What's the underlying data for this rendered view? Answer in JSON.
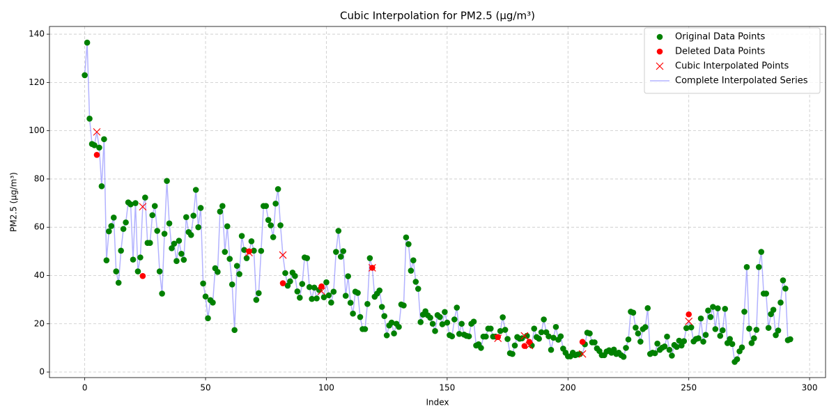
{
  "chart_data": {
    "type": "scatter",
    "title": "Cubic Interpolation for PM2.5 (μg/m³)",
    "x_label": "Index",
    "y_label": "PM2.5 (μg/m³)",
    "xlim": [
      -14.6,
      306.6
    ],
    "ylim": [
      -2.3,
      143.2
    ],
    "xticks": [
      0,
      50,
      100,
      150,
      200,
      250,
      300
    ],
    "yticks": [
      0,
      20,
      40,
      60,
      80,
      100,
      120,
      140
    ],
    "grid": true,
    "legend": "upper right",
    "x": [
      0,
      1,
      2,
      3,
      4,
      5,
      6,
      7,
      8,
      9,
      10,
      11,
      12,
      13,
      14,
      15,
      16,
      17,
      18,
      19,
      20,
      21,
      22,
      23,
      24,
      25,
      26,
      27,
      28,
      29,
      30,
      31,
      32,
      33,
      34,
      35,
      36,
      37,
      38,
      39,
      40,
      41,
      42,
      43,
      44,
      45,
      46,
      47,
      48,
      49,
      50,
      51,
      52,
      53,
      54,
      55,
      56,
      57,
      58,
      59,
      60,
      61,
      62,
      63,
      64,
      65,
      66,
      67,
      68,
      69,
      70,
      71,
      72,
      73,
      74,
      75,
      76,
      77,
      78,
      79,
      80,
      81,
      82,
      83,
      84,
      85,
      86,
      87,
      88,
      89,
      90,
      91,
      92,
      93,
      94,
      95,
      96,
      97,
      98,
      99,
      100,
      101,
      102,
      103,
      104,
      105,
      106,
      107,
      108,
      109,
      110,
      111,
      112,
      113,
      114,
      115,
      116,
      117,
      118,
      119,
      120,
      121,
      122,
      123,
      124,
      125,
      126,
      127,
      128,
      129,
      130,
      131,
      132,
      133,
      134,
      135,
      136,
      137,
      138,
      139,
      140,
      141,
      142,
      143,
      144,
      145,
      146,
      147,
      148,
      149,
      150,
      151,
      152,
      153,
      154,
      155,
      156,
      157,
      158,
      159,
      160,
      161,
      162,
      163,
      164,
      165,
      166,
      167,
      168,
      169,
      170,
      171,
      172,
      173,
      174,
      175,
      176,
      177,
      178,
      179,
      180,
      181,
      182,
      183,
      184,
      185,
      186,
      187,
      188,
      189,
      190,
      191,
      192,
      193,
      194,
      195,
      196,
      197,
      198,
      199,
      200,
      201,
      202,
      203,
      204,
      205,
      206,
      207,
      208,
      209,
      210,
      211,
      212,
      213,
      214,
      215,
      216,
      217,
      218,
      219,
      220,
      221,
      222,
      223,
      224,
      225,
      226,
      227,
      228,
      229,
      230,
      231,
      232,
      233,
      234,
      235,
      236,
      237,
      238,
      239,
      240,
      241,
      242,
      243,
      244,
      245,
      246,
      247,
      248,
      249,
      250,
      251,
      252,
      253,
      254,
      255,
      256,
      257,
      258,
      259,
      260,
      261,
      262,
      263,
      264,
      265,
      266,
      267,
      268,
      269,
      270,
      271,
      272,
      273,
      274,
      275,
      276,
      277,
      278,
      279,
      280,
      281,
      282,
      283,
      284,
      285,
      286,
      287,
      288,
      289,
      290,
      291,
      292
    ],
    "series": [
      {
        "name": "Original Data Points",
        "color": "#008000",
        "style": "marker",
        "values": [
          123,
          136.5,
          105,
          94.5,
          94,
          null,
          93,
          77,
          96.5,
          46.3,
          58.3,
          60.5,
          64,
          41.7,
          37,
          50.3,
          59.3,
          62,
          70.3,
          69.5,
          46.6,
          70,
          41.7,
          47.5,
          null,
          72.3,
          53.5,
          53.5,
          65,
          68.8,
          58.5,
          41.7,
          32.5,
          57.3,
          79.2,
          61.6,
          51.3,
          53.2,
          46,
          54.4,
          49,
          46.5,
          64.2,
          58,
          56.8,
          64.8,
          75.5,
          60,
          68,
          36.7,
          31.3,
          22.3,
          29.8,
          28.8,
          43,
          41.5,
          66.5,
          68.8,
          49.8,
          60.4,
          46.9,
          36.3,
          17.4,
          44,
          40.6,
          56.4,
          50.6,
          47.2,
          null,
          54.2,
          50.3,
          29.9,
          32.7,
          50.2,
          68.8,
          68.8,
          63,
          60.8,
          55.9,
          69.8,
          75.8,
          60.8,
          null,
          41,
          35.8,
          37.6,
          41.2,
          39.8,
          33.4,
          30.8,
          36.5,
          47.5,
          47.2,
          35.2,
          30.3,
          35,
          30.5,
          34,
          null,
          31,
          37.2,
          31.8,
          28.8,
          33.3,
          49.8,
          58.5,
          47.8,
          50.1,
          31.6,
          39.7,
          28.7,
          24.2,
          33.3,
          32.8,
          22.8,
          17.8,
          17.8,
          28.2,
          47.2,
          null,
          31.2,
          32.5,
          33.8,
          27,
          23.2,
          15.2,
          19.3,
          20.5,
          16,
          20,
          18.7,
          28,
          27.6,
          55.8,
          53,
          42,
          46.3,
          37.4,
          34.5,
          20.7,
          23.8,
          25.2,
          23.5,
          22.5,
          20,
          17,
          23.6,
          22.8,
          19.8,
          24.9,
          20.5,
          15.3,
          14.8,
          21.8,
          26.7,
          15.8,
          20,
          15.5,
          15,
          14.8,
          20,
          20.9,
          11,
          11.5,
          10,
          14.7,
          14.7,
          18,
          18,
          14.7,
          14.7,
          null,
          17,
          22.7,
          17.5,
          13.7,
          7.8,
          7.5,
          11,
          14.5,
          13.8,
          14,
          null,
          15,
          null,
          11,
          18,
          14.5,
          13.8,
          16.5,
          21.8,
          16.5,
          14.8,
          9.2,
          14.2,
          18.7,
          13.4,
          14.8,
          9.7,
          8,
          6.5,
          6.5,
          8,
          7,
          7.3,
          7.5,
          null,
          11.5,
          16.3,
          16,
          12.3,
          12.3,
          9.8,
          8.7,
          7,
          7,
          8.5,
          9,
          8,
          9.3,
          7.5,
          8,
          7,
          6.3,
          10,
          13.5,
          25,
          24.6,
          18.4,
          16,
          12.6,
          17.8,
          18.6,
          26.5,
          7.5,
          8,
          7.8,
          11.8,
          9.2,
          10.1,
          10.6,
          14.7,
          9.2,
          6.8,
          11.2,
          10.4,
          13,
          11,
          12.8,
          18.2,
          null,
          18.5,
          12.7,
          13.7,
          14,
          22.2,
          12.6,
          15.4,
          25.5,
          22.8,
          27,
          17.8,
          26.4,
          15,
          17.3,
          26.2,
          12,
          13.7,
          11.6,
          4.2,
          5.3,
          8.6,
          10.2,
          25,
          43.5,
          18,
          12,
          14,
          17.5,
          43.5,
          49.8,
          32.5,
          32.5,
          18.3,
          24,
          25.8,
          15.3,
          17.2,
          28.8,
          38,
          34.6,
          13.2,
          13.6
        ]
      },
      {
        "name": "Deleted Data Points",
        "color": "#ff0000",
        "style": "marker",
        "x": [
          5,
          24,
          68,
          82,
          98,
          119,
          171,
          182,
          184,
          206,
          250
        ],
        "values": [
          90,
          39.8,
          50,
          36.8,
          35.5,
          43.2,
          14.5,
          10.8,
          12.5,
          12.5,
          23.9
        ]
      },
      {
        "name": "Cubic Interpolated Points",
        "color": "#ff0000",
        "style": "cross",
        "x": [
          5,
          24,
          68,
          82,
          98,
          119,
          171,
          182,
          184,
          206,
          250
        ],
        "values": [
          99.5,
          68.5,
          49.5,
          48.5,
          33.5,
          43.2,
          14,
          15,
          11,
          7.5,
          21
        ]
      },
      {
        "name": "Complete Interpolated Series",
        "color": "#0000ff",
        "style": "line",
        "alpha": 0.3,
        "values": [
          123,
          136.5,
          105,
          94.5,
          94,
          99.5,
          93,
          77,
          96.5,
          46.3,
          58.3,
          60.5,
          64,
          41.7,
          37,
          50.3,
          59.3,
          62,
          70.3,
          69.5,
          46.6,
          70,
          41.7,
          47.5,
          68.5,
          72.3,
          53.5,
          53.5,
          65,
          68.8,
          58.5,
          41.7,
          32.5,
          57.3,
          79.2,
          61.6,
          51.3,
          53.2,
          46,
          54.4,
          49,
          46.5,
          64.2,
          58,
          56.8,
          64.8,
          75.5,
          60,
          68,
          36.7,
          31.3,
          22.3,
          29.8,
          28.8,
          43,
          41.5,
          66.5,
          68.8,
          49.8,
          60.4,
          46.9,
          36.3,
          17.4,
          44,
          40.6,
          56.4,
          50.6,
          47.2,
          49.5,
          54.2,
          50.3,
          29.9,
          32.7,
          50.2,
          68.8,
          68.8,
          63,
          60.8,
          55.9,
          69.8,
          75.8,
          60.8,
          48.5,
          41,
          35.8,
          37.6,
          41.2,
          39.8,
          33.4,
          30.8,
          36.5,
          47.5,
          47.2,
          35.2,
          30.3,
          35,
          30.5,
          34,
          33.5,
          31,
          37.2,
          31.8,
          28.8,
          33.3,
          49.8,
          58.5,
          47.8,
          50.1,
          31.6,
          39.7,
          28.7,
          24.2,
          33.3,
          32.8,
          22.8,
          17.8,
          17.8,
          28.2,
          47.2,
          43.2,
          31.2,
          32.5,
          33.8,
          27,
          23.2,
          15.2,
          19.3,
          20.5,
          16,
          20,
          18.7,
          28,
          27.6,
          55.8,
          53,
          42,
          46.3,
          37.4,
          34.5,
          20.7,
          23.8,
          25.2,
          23.5,
          22.5,
          20,
          17,
          23.6,
          22.8,
          19.8,
          24.9,
          20.5,
          15.3,
          14.8,
          21.8,
          26.7,
          15.8,
          20,
          15.5,
          15,
          14.8,
          20,
          20.9,
          11,
          11.5,
          10,
          14.7,
          14.7,
          18,
          18,
          14.7,
          14.7,
          14,
          17,
          22.7,
          17.5,
          13.7,
          7.8,
          7.5,
          11,
          14.5,
          13.8,
          14,
          15,
          15,
          11,
          11,
          18,
          14.5,
          13.8,
          16.5,
          21.8,
          16.5,
          14.8,
          9.2,
          14.2,
          18.7,
          13.4,
          14.8,
          9.7,
          8,
          6.5,
          6.5,
          8,
          7,
          7.3,
          7.5,
          7.5,
          11.5,
          16.3,
          16,
          12.3,
          12.3,
          9.8,
          8.7,
          7,
          7,
          8.5,
          9,
          8,
          9.3,
          7.5,
          8,
          7,
          6.3,
          10,
          13.5,
          25,
          24.6,
          18.4,
          16,
          12.6,
          17.8,
          18.6,
          26.5,
          7.5,
          8,
          7.8,
          11.8,
          9.2,
          10.1,
          10.6,
          14.7,
          9.2,
          6.8,
          11.2,
          10.4,
          13,
          11,
          12.8,
          18.2,
          21,
          18.5,
          12.7,
          13.7,
          14,
          22.2,
          12.6,
          15.4,
          25.5,
          22.8,
          27,
          17.8,
          26.4,
          15,
          17.3,
          26.2,
          12,
          13.7,
          11.6,
          4.2,
          5.3,
          8.6,
          10.2,
          25,
          43.5,
          18,
          12,
          14,
          17.5,
          43.5,
          49.8,
          32.5,
          32.5,
          18.3,
          24,
          25.8,
          15.3,
          17.2,
          28.8,
          38,
          34.6,
          13.2,
          13.6
        ]
      }
    ]
  }
}
